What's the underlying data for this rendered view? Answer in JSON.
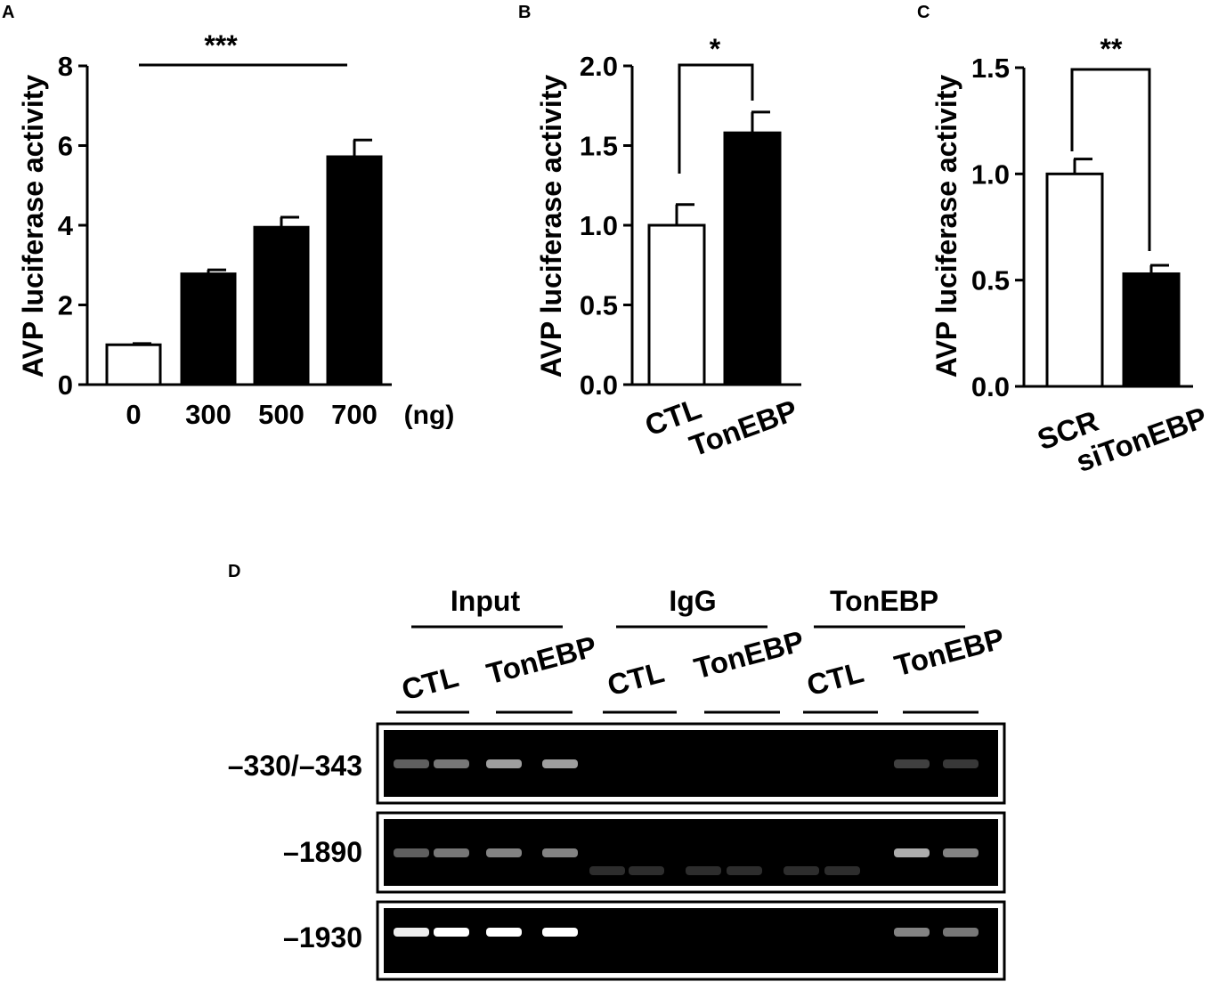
{
  "chart_data": [
    {
      "panel_label": "A",
      "type": "bar",
      "categories": [
        "0",
        "300",
        "500",
        "700"
      ],
      "unit_label": "(ng)",
      "values": [
        1.0,
        2.78,
        3.95,
        5.72
      ],
      "errors": [
        0.03,
        0.1,
        0.25,
        0.42
      ],
      "bar_colors": [
        "#ffffff",
        "#000000",
        "#000000",
        "#000000"
      ],
      "ylabel": "AVP luciferase activity",
      "ylim": [
        0,
        8
      ],
      "yticks": [
        "0",
        "2",
        "4",
        "6",
        "8"
      ],
      "significance": "***"
    },
    {
      "panel_label": "B",
      "type": "bar",
      "categories": [
        "CTL",
        "TonEBP"
      ],
      "values": [
        1.0,
        1.58
      ],
      "errors": [
        0.13,
        0.13
      ],
      "bar_colors": [
        "#ffffff",
        "#000000"
      ],
      "ylabel": "AVP luciferase activity",
      "ylim": [
        0,
        2.0
      ],
      "yticks": [
        "0.0",
        "0.5",
        "1.0",
        "1.5",
        "2.0"
      ],
      "significance": "*"
    },
    {
      "panel_label": "C",
      "type": "bar",
      "categories": [
        "SCR",
        "siTonEBP"
      ],
      "values": [
        1.0,
        0.53
      ],
      "errors": [
        0.07,
        0.04
      ],
      "bar_colors": [
        "#ffffff",
        "#000000"
      ],
      "ylabel": "AVP luciferase activity",
      "ylim": [
        0,
        1.5
      ],
      "yticks": [
        "0.0",
        "0.5",
        "1.0",
        "1.5"
      ],
      "significance": "**"
    }
  ],
  "gel": {
    "panel_label": "D",
    "groups": [
      "Input",
      "IgG",
      "TonEBP"
    ],
    "subgroups": [
      "CTL",
      "TonEBP",
      "CTL",
      "TonEBP",
      "CTL",
      "TonEBP"
    ],
    "rows": [
      {
        "label": "–330/–343",
        "lane_intensity": [
          0.45,
          0.55,
          0.7,
          0.7,
          0,
          0,
          0,
          0,
          0,
          0,
          0.3,
          0.25
        ]
      },
      {
        "label": "–1890",
        "lane_intensity": [
          0.45,
          0.55,
          0.6,
          0.6,
          0.18,
          0.18,
          0.18,
          0.18,
          0.18,
          0.18,
          0.75,
          0.6
        ]
      },
      {
        "label": "–1930",
        "lane_intensity": [
          0.95,
          1.0,
          1.0,
          1.0,
          0,
          0,
          0,
          0,
          0,
          0,
          0.6,
          0.55
        ]
      }
    ]
  }
}
